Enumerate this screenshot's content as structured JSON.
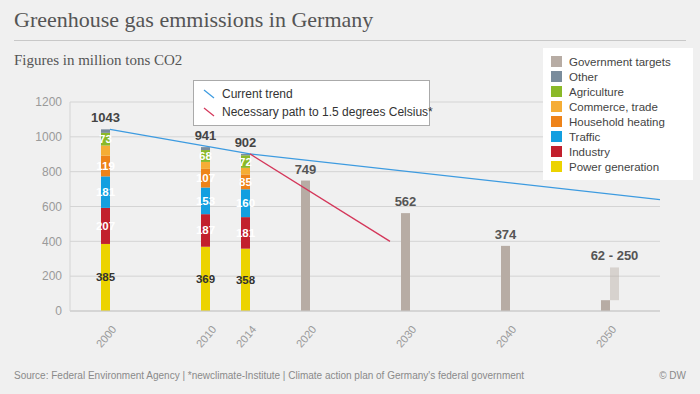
{
  "chart_data": {
    "type": "bar",
    "title": "Greenhouse gas emmissions in Germany",
    "subtitle": "Figures in million tons CO2",
    "source": "Source: Federal Environment Agency | *newclimate-Institute | Climate action plan of Germany's federal government",
    "credit": "© DW",
    "stacked": true,
    "grid": true,
    "legend": "upper right",
    "x": [
      2000,
      2010,
      2014,
      2020,
      2030,
      2040,
      2050
    ],
    "xlim": [
      1996,
      2055
    ],
    "xticks": [
      2000,
      2010,
      2014,
      2020,
      2030,
      2040,
      2050
    ],
    "ylim": [
      0,
      1200
    ],
    "yticks": [
      0,
      200,
      400,
      600,
      800,
      1000,
      1200
    ],
    "totals": [
      1043,
      941,
      902,
      null,
      null,
      null,
      null
    ],
    "series": [
      {
        "name": "Power generation",
        "type": "bar",
        "color": "#ecd300",
        "values": [
          385,
          369,
          358,
          null,
          null,
          null,
          null
        ],
        "data_labels": true
      },
      {
        "name": "Industry",
        "type": "bar",
        "color": "#c2202d",
        "values": [
          207,
          187,
          181,
          null,
          null,
          null,
          null
        ],
        "data_labels": true
      },
      {
        "name": "Traffic",
        "type": "bar",
        "color": "#139fe0",
        "values": [
          181,
          153,
          160,
          null,
          null,
          null,
          null
        ],
        "data_labels": true
      },
      {
        "name": "Household heating",
        "type": "bar",
        "color": "#ee8319",
        "values": [
          119,
          107,
          85,
          null,
          null,
          null,
          null
        ],
        "data_labels": true
      },
      {
        "name": "Commerce, trade",
        "type": "bar",
        "color": "#f5ad35",
        "values": [
          58,
          40,
          38,
          null,
          null,
          null,
          null
        ],
        "data_labels": false
      },
      {
        "name": "Agriculture",
        "type": "bar",
        "color": "#8ab928",
        "values": [
          73,
          68,
          72,
          null,
          null,
          null,
          null
        ],
        "data_labels": true
      },
      {
        "name": "Other",
        "type": "bar",
        "color": "#7a8c9c",
        "values": [
          20,
          17,
          8,
          null,
          null,
          null,
          null
        ],
        "data_labels": false
      },
      {
        "name": "Government targets",
        "type": "bar",
        "color": "#b7aca4",
        "values": [
          null,
          null,
          null,
          749,
          562,
          374,
          62
        ],
        "range_high": [
          null,
          null,
          null,
          null,
          null,
          null,
          250
        ],
        "value_labels": [
          null,
          null,
          null,
          "749",
          "562",
          "374",
          "62 - 250"
        ],
        "data_labels": true
      },
      {
        "name": "Current trend",
        "type": "line",
        "color": "#3d9be0",
        "x": [
          2000,
          2014,
          2055
        ],
        "values": [
          1043,
          902,
          640
        ]
      },
      {
        "name": "Necessary path to 1.5 degrees Celsius*",
        "type": "line",
        "color": "#d4375a",
        "x": [
          2014,
          2028
        ],
        "values": [
          902,
          400
        ]
      }
    ]
  }
}
